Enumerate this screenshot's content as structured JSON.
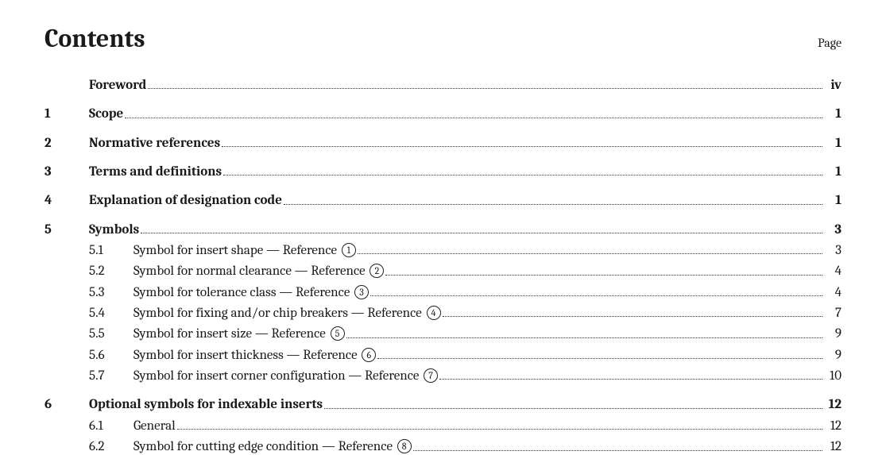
{
  "header": {
    "title": "Contents",
    "page_label": "Page"
  },
  "toc": [
    {
      "kind": "top",
      "num": "",
      "title": "Foreword",
      "page": "iv",
      "bold": true
    },
    {
      "kind": "gap"
    },
    {
      "kind": "top",
      "num": "1",
      "title": "Scope",
      "page": "1",
      "bold": true
    },
    {
      "kind": "gap"
    },
    {
      "kind": "top",
      "num": "2",
      "title": "Normative references",
      "page": "1",
      "bold": true
    },
    {
      "kind": "gap"
    },
    {
      "kind": "top",
      "num": "3",
      "title": "Terms and definitions",
      "page": "1",
      "bold": true
    },
    {
      "kind": "gap"
    },
    {
      "kind": "top",
      "num": "4",
      "title": "Explanation of designation code",
      "page": "1",
      "bold": true
    },
    {
      "kind": "gap"
    },
    {
      "kind": "top",
      "num": "5",
      "title": "Symbols",
      "page": "3",
      "bold": true
    },
    {
      "kind": "sub",
      "sub": "5.1",
      "title": "Symbol for insert shape — Reference ",
      "circ": "1",
      "page": "3"
    },
    {
      "kind": "sub",
      "sub": "5.2",
      "title": "Symbol for normal clearance — Reference ",
      "circ": "2",
      "page": "4"
    },
    {
      "kind": "sub",
      "sub": "5.3",
      "title": "Symbol for tolerance class — Reference ",
      "circ": "3",
      "page": "4"
    },
    {
      "kind": "sub",
      "sub": "5.4",
      "title": "Symbol for fixing and/or chip breakers — Reference ",
      "circ": "4",
      "page": "7"
    },
    {
      "kind": "sub",
      "sub": "5.5",
      "title": "Symbol for insert size — Reference ",
      "circ": "5",
      "page": "9"
    },
    {
      "kind": "sub",
      "sub": "5.6",
      "title": "Symbol for insert thickness — Reference ",
      "circ": "6",
      "page": "9"
    },
    {
      "kind": "sub",
      "sub": "5.7",
      "title": "Symbol for insert corner configuration — Reference ",
      "circ": "7",
      "page": "10"
    },
    {
      "kind": "gap"
    },
    {
      "kind": "top",
      "num": "6",
      "title": "Optional symbols for indexable inserts",
      "page": "12",
      "bold": true
    },
    {
      "kind": "sub",
      "sub": "6.1",
      "title": "General",
      "page": "12"
    },
    {
      "kind": "sub",
      "sub": "6.2",
      "title": "Symbol for cutting edge condition — Reference ",
      "circ": "8",
      "page": "12"
    }
  ]
}
